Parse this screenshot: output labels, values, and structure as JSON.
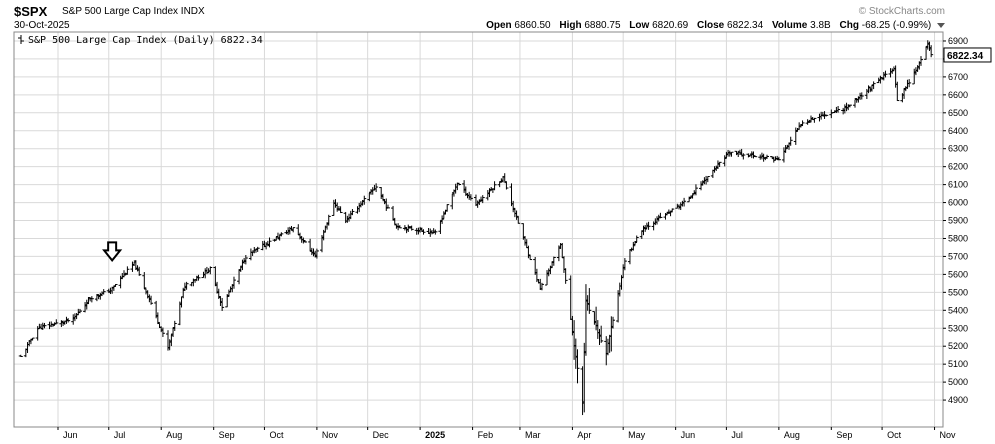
{
  "header": {
    "ticker": "$SPX",
    "name": "S&P 500 Large Cap Index",
    "exchange": "INDX",
    "date": "30-Oct-2025",
    "brand": "© StockCharts.com",
    "open_label": "Open",
    "open": "6860.50",
    "high_label": "High",
    "high": "6880.75",
    "low_label": "Low",
    "low": "6820.69",
    "close_label": "Close",
    "close": "6822.34",
    "volume_label": "Volume",
    "volume": "3.8B",
    "chg_label": "Chg",
    "chg": "-68.25 (-0.99%)"
  },
  "legend": {
    "text": "S&P 500 Large Cap Index (Daily) 6822.34"
  },
  "colors": {
    "bars": "#000000",
    "grid": "#d9d9d9",
    "last_price_box": "#ffffff"
  },
  "chart_data": {
    "type": "ohlc",
    "title": "S&P 500 Large Cap Index (Daily) 6822.34",
    "last_price": "6822.34",
    "ylim": [
      4750,
      6950
    ],
    "y_ticks": [
      4900,
      5000,
      5100,
      5200,
      5300,
      5400,
      5500,
      5600,
      5700,
      5800,
      5900,
      6000,
      6100,
      6200,
      6300,
      6400,
      6500,
      6600,
      6700,
      6800,
      6900
    ],
    "x_labels": [
      "Jun",
      "Jul",
      "Aug",
      "Sep",
      "Oct",
      "Nov",
      "Dec",
      "2025",
      "Feb",
      "Mar",
      "Apr",
      "May",
      "Jun",
      "Jul",
      "Aug",
      "Sep",
      "Oct",
      "Nov"
    ],
    "annotation": "down-arrow marker above early July 2024 bars",
    "series_anchors": [
      {
        "date": "2024-05-10",
        "close": 5140
      },
      {
        "date": "2024-05-20",
        "close": 5300
      },
      {
        "date": "2024-06-10",
        "close": 5350
      },
      {
        "date": "2024-06-20",
        "close": 5470
      },
      {
        "date": "2024-07-02",
        "close": 5510
      },
      {
        "date": "2024-07-10",
        "close": 5600
      },
      {
        "date": "2024-07-16",
        "close": 5660
      },
      {
        "date": "2024-07-26",
        "close": 5440
      },
      {
        "date": "2024-08-05",
        "close": 5190
      },
      {
        "date": "2024-08-15",
        "close": 5540
      },
      {
        "date": "2024-08-30",
        "close": 5630
      },
      {
        "date": "2024-09-06",
        "close": 5420
      },
      {
        "date": "2024-09-20",
        "close": 5700
      },
      {
        "date": "2024-10-18",
        "close": 5860
      },
      {
        "date": "2024-10-31",
        "close": 5700
      },
      {
        "date": "2024-11-11",
        "close": 6000
      },
      {
        "date": "2024-11-18",
        "close": 5900
      },
      {
        "date": "2024-12-06",
        "close": 6090
      },
      {
        "date": "2024-12-18",
        "close": 5870
      },
      {
        "date": "2025-01-10",
        "close": 5830
      },
      {
        "date": "2025-01-23",
        "close": 6110
      },
      {
        "date": "2025-02-03",
        "close": 5990
      },
      {
        "date": "2025-02-19",
        "close": 6140
      },
      {
        "date": "2025-03-13",
        "close": 5520
      },
      {
        "date": "2025-03-25",
        "close": 5770
      },
      {
        "date": "2025-04-04",
        "close": 5070
      },
      {
        "date": "2025-04-07",
        "close": 4890
      },
      {
        "date": "2025-04-09",
        "close": 5450
      },
      {
        "date": "2025-04-21",
        "close": 5160
      },
      {
        "date": "2025-05-02",
        "close": 5680
      },
      {
        "date": "2025-05-12",
        "close": 5850
      },
      {
        "date": "2025-06-06",
        "close": 6000
      },
      {
        "date": "2025-07-03",
        "close": 6280
      },
      {
        "date": "2025-08-01",
        "close": 6240
      },
      {
        "date": "2025-08-15",
        "close": 6450
      },
      {
        "date": "2025-09-10",
        "close": 6530
      },
      {
        "date": "2025-10-08",
        "close": 6750
      },
      {
        "date": "2025-10-10",
        "close": 6560
      },
      {
        "date": "2025-10-24",
        "close": 6790
      },
      {
        "date": "2025-10-28",
        "close": 6890
      },
      {
        "date": "2025-10-30",
        "close": 6822
      }
    ],
    "grid": true
  }
}
